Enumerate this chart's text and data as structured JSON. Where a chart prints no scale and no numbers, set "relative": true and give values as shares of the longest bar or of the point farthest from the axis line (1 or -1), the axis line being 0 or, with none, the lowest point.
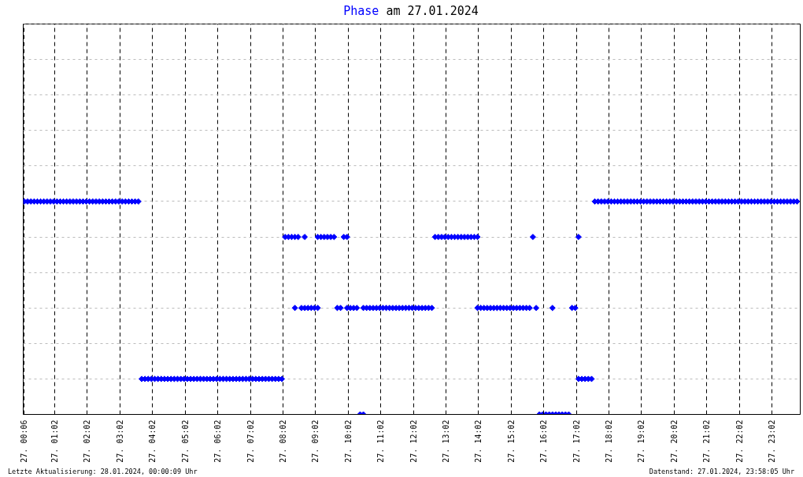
{
  "chart_data": {
    "type": "scatter",
    "title": "Phase am 27.01.2024",
    "relative": true,
    "series": [
      {
        "color": "#0000ff",
        "x": [
          "2024-01-27T00:06",
          "2024-01-27T00:12",
          "2024-01-27T00:18",
          "2024-01-27T00:24",
          "2024-01-27T00:30",
          "2024-01-27T00:36",
          "2024-01-27T00:42",
          "2024-01-27T00:48",
          "2024-01-27T00:54",
          "2024-01-27T01:00",
          "2024-01-27T01:06",
          "2024-01-27T01:12",
          "2024-01-27T01:18",
          "2024-01-27T01:24",
          "2024-01-27T01:30",
          "2024-01-27T01:36",
          "2024-01-27T01:42",
          "2024-01-27T01:48",
          "2024-01-27T01:54",
          "2024-01-27T02:00",
          "2024-01-27T02:06",
          "2024-01-27T02:12",
          "2024-01-27T02:18",
          "2024-01-27T02:24",
          "2024-01-27T02:30",
          "2024-01-27T02:36",
          "2024-01-27T02:42",
          "2024-01-27T02:48",
          "2024-01-27T02:54",
          "2024-01-27T03:00",
          "2024-01-27T03:06",
          "2024-01-27T03:12",
          "2024-01-27T03:18",
          "2024-01-27T03:24",
          "2024-01-27T03:30",
          "2024-01-27T03:36",
          "2024-01-27T03:42",
          "2024-01-27T03:48",
          "2024-01-27T03:54",
          "2024-01-27T04:00",
          "2024-01-27T04:06",
          "2024-01-27T04:12",
          "2024-01-27T04:18",
          "2024-01-27T04:24",
          "2024-01-27T04:30",
          "2024-01-27T04:36",
          "2024-01-27T04:42",
          "2024-01-27T04:48",
          "2024-01-27T04:54",
          "2024-01-27T05:00",
          "2024-01-27T05:06",
          "2024-01-27T05:12",
          "2024-01-27T05:18",
          "2024-01-27T05:24",
          "2024-01-27T05:30",
          "2024-01-27T05:36",
          "2024-01-27T05:42",
          "2024-01-27T05:48",
          "2024-01-27T05:54",
          "2024-01-27T06:00",
          "2024-01-27T06:06",
          "2024-01-27T06:12",
          "2024-01-27T06:18",
          "2024-01-27T06:24",
          "2024-01-27T06:30",
          "2024-01-27T06:36",
          "2024-01-27T06:42",
          "2024-01-27T06:48",
          "2024-01-27T06:54",
          "2024-01-27T07:00",
          "2024-01-27T07:06",
          "2024-01-27T07:12",
          "2024-01-27T07:18",
          "2024-01-27T07:24",
          "2024-01-27T07:30",
          "2024-01-27T07:36",
          "2024-01-27T07:42",
          "2024-01-27T07:48",
          "2024-01-27T07:54",
          "2024-01-27T08:00",
          "2024-01-27T08:06",
          "2024-01-27T08:12",
          "2024-01-27T08:18",
          "2024-01-27T08:24",
          "2024-01-27T08:30",
          "2024-01-27T08:24",
          "2024-01-27T08:42",
          "2024-01-27T08:36",
          "2024-01-27T08:42",
          "2024-01-27T08:48",
          "2024-01-27T08:54",
          "2024-01-27T09:00",
          "2024-01-27T09:06",
          "2024-01-27T09:06",
          "2024-01-27T09:12",
          "2024-01-27T09:18",
          "2024-01-27T09:24",
          "2024-01-27T09:30",
          "2024-01-27T09:36",
          "2024-01-27T09:42",
          "2024-01-27T09:48",
          "2024-01-27T09:54",
          "2024-01-27T10:00",
          "2024-01-27T10:00",
          "2024-01-27T10:06",
          "2024-01-27T10:12",
          "2024-01-27T10:18",
          "2024-01-27T10:24",
          "2024-01-27T10:30",
          "2024-01-27T10:30",
          "2024-01-27T10:36",
          "2024-01-27T10:42",
          "2024-01-27T10:48",
          "2024-01-27T10:54",
          "2024-01-27T11:00",
          "2024-01-27T11:06",
          "2024-01-27T11:12",
          "2024-01-27T11:18",
          "2024-01-27T11:24",
          "2024-01-27T11:30",
          "2024-01-27T11:36",
          "2024-01-27T11:42",
          "2024-01-27T11:48",
          "2024-01-27T11:54",
          "2024-01-27T12:00",
          "2024-01-27T12:06",
          "2024-01-27T12:12",
          "2024-01-27T12:18",
          "2024-01-27T12:24",
          "2024-01-27T12:30",
          "2024-01-27T12:36",
          "2024-01-27T12:42",
          "2024-01-27T12:48",
          "2024-01-27T12:54",
          "2024-01-27T13:00",
          "2024-01-27T13:06",
          "2024-01-27T13:12",
          "2024-01-27T13:18",
          "2024-01-27T13:24",
          "2024-01-27T13:30",
          "2024-01-27T13:36",
          "2024-01-27T13:42",
          "2024-01-27T13:48",
          "2024-01-27T13:54",
          "2024-01-27T14:00",
          "2024-01-27T14:00",
          "2024-01-27T14:06",
          "2024-01-27T14:12",
          "2024-01-27T14:18",
          "2024-01-27T14:24",
          "2024-01-27T14:30",
          "2024-01-27T14:36",
          "2024-01-27T14:42",
          "2024-01-27T14:48",
          "2024-01-27T14:54",
          "2024-01-27T15:00",
          "2024-01-27T15:06",
          "2024-01-27T15:12",
          "2024-01-27T15:18",
          "2024-01-27T15:24",
          "2024-01-27T15:30",
          "2024-01-27T15:36",
          "2024-01-27T15:42",
          "2024-01-27T15:48",
          "2024-01-27T15:54",
          "2024-01-27T16:00",
          "2024-01-27T16:06",
          "2024-01-27T16:12",
          "2024-01-27T16:18",
          "2024-01-27T16:24",
          "2024-01-27T16:30",
          "2024-01-27T16:36",
          "2024-01-27T16:42",
          "2024-01-27T16:48",
          "2024-01-27T16:18",
          "2024-01-27T16:54",
          "2024-01-27T17:00",
          "2024-01-27T17:06",
          "2024-01-27T17:06",
          "2024-01-27T17:12",
          "2024-01-27T17:18",
          "2024-01-27T17:24",
          "2024-01-27T17:30",
          "2024-01-27T17:36",
          "2024-01-27T17:42",
          "2024-01-27T17:48",
          "2024-01-27T17:54",
          "2024-01-27T18:00",
          "2024-01-27T18:06",
          "2024-01-27T18:12",
          "2024-01-27T18:18",
          "2024-01-27T18:24",
          "2024-01-27T18:30",
          "2024-01-27T18:36",
          "2024-01-27T18:42",
          "2024-01-27T18:48",
          "2024-01-27T18:54",
          "2024-01-27T19:00",
          "2024-01-27T19:06",
          "2024-01-27T19:12",
          "2024-01-27T19:18",
          "2024-01-27T19:24",
          "2024-01-27T19:30",
          "2024-01-27T19:36",
          "2024-01-27T19:42",
          "2024-01-27T19:48",
          "2024-01-27T19:54",
          "2024-01-27T20:00",
          "2024-01-27T20:06",
          "2024-01-27T20:12",
          "2024-01-27T20:18",
          "2024-01-27T20:24",
          "2024-01-27T20:30",
          "2024-01-27T20:36",
          "2024-01-27T20:42",
          "2024-01-27T20:48",
          "2024-01-27T20:54",
          "2024-01-27T21:00",
          "2024-01-27T21:06",
          "2024-01-27T21:12",
          "2024-01-27T21:18",
          "2024-01-27T21:24",
          "2024-01-27T21:30",
          "2024-01-27T21:36",
          "2024-01-27T21:42",
          "2024-01-27T21:48",
          "2024-01-27T21:54",
          "2024-01-27T22:00",
          "2024-01-27T22:06",
          "2024-01-27T22:12",
          "2024-01-27T22:18",
          "2024-01-27T22:24",
          "2024-01-27T22:30",
          "2024-01-27T22:36",
          "2024-01-27T22:42",
          "2024-01-27T22:48",
          "2024-01-27T22:54",
          "2024-01-27T23:00",
          "2024-01-27T23:06",
          "2024-01-27T23:12",
          "2024-01-27T23:18",
          "2024-01-27T23:24",
          "2024-01-27T23:30",
          "2024-01-27T23:36",
          "2024-01-27T23:42",
          "2024-01-27T23:48"
        ],
        "values": [
          1,
          1,
          1,
          1,
          1,
          1,
          1,
          1,
          1,
          1,
          1,
          1,
          1,
          1,
          1,
          1,
          1,
          1,
          1,
          1,
          1,
          1,
          1,
          1,
          1,
          1,
          1,
          1,
          1,
          1,
          1,
          1,
          1,
          1,
          1,
          1,
          0.1667,
          0.1667,
          0.1667,
          0.1667,
          0.1667,
          0.1667,
          0.1667,
          0.1667,
          0.1667,
          0.1667,
          0.1667,
          0.1667,
          0.1667,
          0.1667,
          0.1667,
          0.1667,
          0.1667,
          0.1667,
          0.1667,
          0.1667,
          0.1667,
          0.1667,
          0.1667,
          0.1667,
          0.1667,
          0.1667,
          0.1667,
          0.1667,
          0.1667,
          0.1667,
          0.1667,
          0.1667,
          0.1667,
          0.1667,
          0.1667,
          0.1667,
          0.1667,
          0.1667,
          0.1667,
          0.1667,
          0.1667,
          0.1667,
          0.1667,
          0.1667,
          0.8333,
          0.8333,
          0.8333,
          0.8333,
          0.8333,
          0.5,
          0.8333,
          0.5,
          0.5,
          0.5,
          0.5,
          0.5,
          0.5,
          0.8333,
          0.8333,
          0.8333,
          0.8333,
          0.8333,
          0.8333,
          0.5,
          0.5,
          0.8333,
          0.8333,
          0.5,
          0.5,
          0.5,
          0.5,
          0,
          0,
          0.5,
          0.5,
          0.5,
          0.5,
          0.5,
          0.5,
          0.5,
          0.5,
          0.5,
          0.5,
          0.5,
          0.5,
          0.5,
          0.5,
          0.5,
          0.5,
          0.5,
          0.5,
          0.5,
          0.5,
          0.5,
          0.5,
          0.8333,
          0.8333,
          0.8333,
          0.8333,
          0.8333,
          0.8333,
          0.8333,
          0.8333,
          0.8333,
          0.8333,
          0.8333,
          0.8333,
          0.8333,
          0.8333,
          0.5,
          0.5,
          0.5,
          0.5,
          0.5,
          0.5,
          0.5,
          0.5,
          0.5,
          0.5,
          0.5,
          0.5,
          0.5,
          0.5,
          0.5,
          0.5,
          0.5,
          0.8333,
          0.5,
          0,
          0,
          0,
          0,
          0,
          0,
          0,
          0,
          0,
          0,
          0.5,
          0.5,
          0.5,
          0.8333,
          0.1667,
          0.1667,
          0.1667,
          0.1667,
          0.1667,
          1,
          1,
          1,
          1,
          1,
          1,
          1,
          1,
          1,
          1,
          1,
          1,
          1,
          1,
          1,
          1,
          1,
          1,
          1,
          1,
          1,
          1,
          1,
          1,
          1,
          1,
          1,
          1,
          1,
          1,
          1,
          1,
          1,
          1,
          1,
          1,
          1,
          1,
          1,
          1,
          1,
          1,
          1,
          1,
          1,
          1,
          1,
          1,
          1,
          1,
          1,
          1,
          1,
          1,
          1,
          1,
          1,
          1,
          1,
          1,
          1,
          1,
          1
        ]
      }
    ],
    "xlim": [
      "2024-01-27T00:04",
      "2024-01-27T23:54"
    ],
    "xticks": [
      {
        "value": "2024-01-27T00:06",
        "label": "27. 00:06"
      },
      {
        "value": "2024-01-27T01:02",
        "label": "27. 01:02"
      },
      {
        "value": "2024-01-27T02:02",
        "label": "27. 02:02"
      },
      {
        "value": "2024-01-27T03:02",
        "label": "27. 03:02"
      },
      {
        "value": "2024-01-27T04:02",
        "label": "27. 04:02"
      },
      {
        "value": "2024-01-27T05:02",
        "label": "27. 05:02"
      },
      {
        "value": "2024-01-27T06:02",
        "label": "27. 06:02"
      },
      {
        "value": "2024-01-27T07:02",
        "label": "27. 07:02"
      },
      {
        "value": "2024-01-27T08:02",
        "label": "27. 08:02"
      },
      {
        "value": "2024-01-27T09:02",
        "label": "27. 09:02"
      },
      {
        "value": "2024-01-27T10:02",
        "label": "27. 10:02"
      },
      {
        "value": "2024-01-27T11:02",
        "label": "27. 11:02"
      },
      {
        "value": "2024-01-27T12:02",
        "label": "27. 12:02"
      },
      {
        "value": "2024-01-27T13:02",
        "label": "27. 13:02"
      },
      {
        "value": "2024-01-27T14:02",
        "label": "27. 14:02"
      },
      {
        "value": "2024-01-27T15:02",
        "label": "27. 15:02"
      },
      {
        "value": "2024-01-27T16:02",
        "label": "27. 16:02"
      },
      {
        "value": "2024-01-27T17:02",
        "label": "27. 17:02"
      },
      {
        "value": "2024-01-27T18:02",
        "label": "27. 18:02"
      },
      {
        "value": "2024-01-27T19:02",
        "label": "27. 19:02"
      },
      {
        "value": "2024-01-27T20:02",
        "label": "27. 20:02"
      },
      {
        "value": "2024-01-27T21:02",
        "label": "27. 21:02"
      },
      {
        "value": "2024-01-27T22:02",
        "label": "27. 22:02"
      },
      {
        "value": "2024-01-27T23:02",
        "label": "27. 23:02"
      }
    ],
    "grid": true,
    "marker": "diamond",
    "annotations": [
      "Letzte Aktualisierung: 28.01.2024, 00:00:09 Uhr",
      "Datenstand: 27.01.2024, 23:58:05 Uhr"
    ]
  }
}
